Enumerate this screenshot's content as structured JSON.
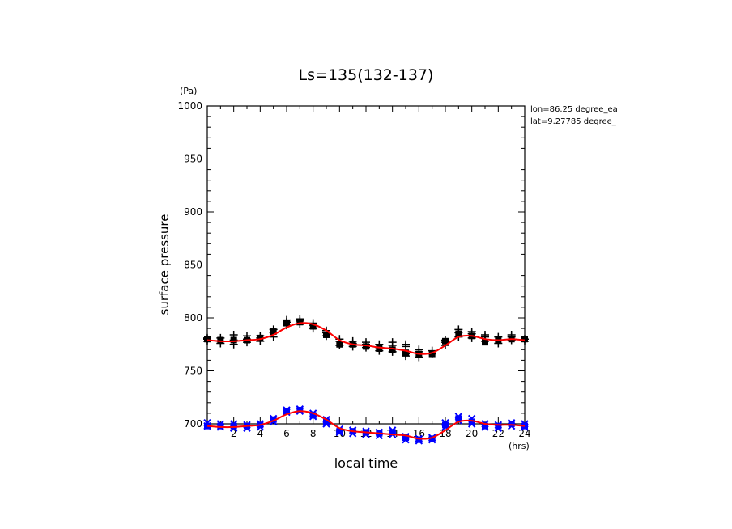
{
  "chart_data": {
    "type": "scatter",
    "title": "Ls=135(132-137)",
    "xlabel": "local time",
    "ylabel": "surface pressure",
    "x_unit": "(hrs)",
    "y_unit": "(Pa)",
    "xlim": [
      0,
      24
    ],
    "ylim": [
      700,
      1000
    ],
    "x_ticks": [
      2,
      4,
      6,
      8,
      10,
      12,
      14,
      16,
      18,
      20,
      22,
      24
    ],
    "y_ticks": [
      700,
      750,
      800,
      850,
      900,
      950,
      1000
    ],
    "annotations": [
      "lon=86.25 degree_ea",
      "lat=9.27785 degree_"
    ],
    "grid": false,
    "series": [
      {
        "marker": "plus",
        "color": "#000000",
        "points": [
          [
            0,
            780
          ],
          [
            0,
            778
          ],
          [
            0,
            781
          ],
          [
            1,
            778
          ],
          [
            1,
            781
          ],
          [
            1,
            776
          ],
          [
            2,
            779
          ],
          [
            2,
            784
          ],
          [
            2,
            775
          ],
          [
            3,
            780
          ],
          [
            3,
            783
          ],
          [
            3,
            777
          ],
          [
            4,
            781
          ],
          [
            4,
            778
          ],
          [
            4,
            783
          ],
          [
            5,
            789
          ],
          [
            5,
            782
          ],
          [
            5,
            786
          ],
          [
            6,
            796
          ],
          [
            6,
            793
          ],
          [
            6,
            798
          ],
          [
            7,
            797
          ],
          [
            7,
            799
          ],
          [
            7,
            794
          ],
          [
            8,
            793
          ],
          [
            8,
            790
          ],
          [
            8,
            795
          ],
          [
            9,
            788
          ],
          [
            9,
            783
          ],
          [
            9,
            786
          ],
          [
            10,
            778
          ],
          [
            10,
            774
          ],
          [
            10,
            780
          ],
          [
            11,
            776
          ],
          [
            11,
            773
          ],
          [
            11,
            778
          ],
          [
            12,
            775
          ],
          [
            12,
            772
          ],
          [
            12,
            777
          ],
          [
            13,
            772
          ],
          [
            13,
            769
          ],
          [
            13,
            775
          ],
          [
            14,
            774
          ],
          [
            14,
            768
          ],
          [
            14,
            777
          ],
          [
            15,
            773
          ],
          [
            15,
            766
          ],
          [
            15,
            764
          ],
          [
            15,
            775
          ],
          [
            16,
            768
          ],
          [
            16,
            763
          ],
          [
            16,
            770
          ],
          [
            17,
            766
          ],
          [
            17,
            769
          ],
          [
            18,
            777
          ],
          [
            18,
            774
          ],
          [
            18,
            779
          ],
          [
            19,
            786
          ],
          [
            19,
            782
          ],
          [
            19,
            789
          ],
          [
            20,
            785
          ],
          [
            20,
            781
          ],
          [
            20,
            787
          ],
          [
            21,
            782
          ],
          [
            21,
            778
          ],
          [
            21,
            784
          ],
          [
            22,
            779
          ],
          [
            22,
            776
          ],
          [
            22,
            782
          ],
          [
            23,
            782
          ],
          [
            23,
            779
          ],
          [
            23,
            784
          ],
          [
            24,
            780
          ],
          [
            24,
            778
          ]
        ]
      },
      {
        "marker": "square",
        "color": "#000000",
        "points": [
          [
            0,
            780
          ],
          [
            1,
            779
          ],
          [
            2,
            779
          ],
          [
            3,
            779
          ],
          [
            4,
            781
          ],
          [
            5,
            787
          ],
          [
            6,
            795
          ],
          [
            7,
            796
          ],
          [
            8,
            792
          ],
          [
            9,
            784
          ],
          [
            10,
            775
          ],
          [
            11,
            775
          ],
          [
            12,
            773
          ],
          [
            13,
            771
          ],
          [
            14,
            770
          ],
          [
            15,
            767
          ],
          [
            16,
            766
          ],
          [
            17,
            766
          ],
          [
            18,
            778
          ],
          [
            19,
            785
          ],
          [
            20,
            783
          ],
          [
            21,
            777
          ],
          [
            22,
            779
          ],
          [
            23,
            780
          ],
          [
            24,
            780
          ]
        ]
      },
      {
        "marker": "x",
        "color": "#0000ff",
        "points": [
          [
            0,
            698
          ],
          [
            0,
            701
          ],
          [
            1,
            697
          ],
          [
            1,
            700
          ],
          [
            2,
            700
          ],
          [
            2,
            696
          ],
          [
            3,
            699
          ],
          [
            3,
            696
          ],
          [
            4,
            700
          ],
          [
            4,
            697
          ],
          [
            5,
            705
          ],
          [
            5,
            702
          ],
          [
            6,
            713
          ],
          [
            6,
            711
          ],
          [
            7,
            714
          ],
          [
            7,
            712
          ],
          [
            8,
            710
          ],
          [
            8,
            707
          ],
          [
            9,
            704
          ],
          [
            9,
            700
          ],
          [
            10,
            695
          ],
          [
            10,
            692
          ],
          [
            11,
            694
          ],
          [
            11,
            691
          ],
          [
            12,
            693
          ],
          [
            12,
            690
          ],
          [
            13,
            692
          ],
          [
            13,
            689
          ],
          [
            14,
            694
          ],
          [
            14,
            690
          ],
          [
            15,
            688
          ],
          [
            15,
            685
          ],
          [
            16,
            686
          ],
          [
            16,
            684
          ],
          [
            17,
            687
          ],
          [
            17,
            685
          ],
          [
            18,
            701
          ],
          [
            18,
            697
          ],
          [
            19,
            707
          ],
          [
            19,
            703
          ],
          [
            20,
            705
          ],
          [
            20,
            700
          ],
          [
            21,
            700
          ],
          [
            21,
            697
          ],
          [
            22,
            699
          ],
          [
            22,
            696
          ],
          [
            23,
            701
          ],
          [
            23,
            698
          ],
          [
            24,
            700
          ],
          [
            24,
            697
          ]
        ]
      },
      {
        "marker": "square",
        "color": "#0000ff",
        "points": [
          [
            0,
            698
          ],
          [
            1,
            698
          ],
          [
            2,
            698
          ],
          [
            3,
            698
          ],
          [
            4,
            699
          ],
          [
            5,
            704
          ],
          [
            6,
            712
          ],
          [
            7,
            713
          ],
          [
            8,
            708
          ],
          [
            9,
            702
          ],
          [
            10,
            693
          ],
          [
            11,
            693
          ],
          [
            12,
            692
          ],
          [
            13,
            691
          ],
          [
            14,
            692
          ],
          [
            15,
            687
          ],
          [
            16,
            685
          ],
          [
            17,
            686
          ],
          [
            18,
            699
          ],
          [
            19,
            705
          ],
          [
            20,
            702
          ],
          [
            21,
            698
          ],
          [
            22,
            698
          ],
          [
            23,
            700
          ],
          [
            24,
            698
          ]
        ]
      },
      {
        "marker": "line",
        "color": "#ff0000",
        "points": [
          [
            0,
            779
          ],
          [
            1,
            778
          ],
          [
            2,
            778
          ],
          [
            3,
            779
          ],
          [
            4,
            780
          ],
          [
            5,
            784
          ],
          [
            6,
            791
          ],
          [
            7,
            795
          ],
          [
            8,
            794
          ],
          [
            9,
            788
          ],
          [
            10,
            779
          ],
          [
            11,
            775
          ],
          [
            12,
            774
          ],
          [
            13,
            772
          ],
          [
            14,
            771
          ],
          [
            15,
            769
          ],
          [
            16,
            766
          ],
          [
            17,
            767
          ],
          [
            18,
            774
          ],
          [
            19,
            782
          ],
          [
            20,
            783
          ],
          [
            21,
            780
          ],
          [
            22,
            779
          ],
          [
            23,
            780
          ],
          [
            24,
            779
          ]
        ]
      },
      {
        "marker": "line",
        "color": "#ff0000",
        "points": [
          [
            0,
            698
          ],
          [
            1,
            697
          ],
          [
            2,
            697
          ],
          [
            3,
            698
          ],
          [
            4,
            699
          ],
          [
            5,
            703
          ],
          [
            6,
            709
          ],
          [
            7,
            712
          ],
          [
            8,
            710
          ],
          [
            9,
            704
          ],
          [
            10,
            696
          ],
          [
            11,
            693
          ],
          [
            12,
            692
          ],
          [
            13,
            691
          ],
          [
            14,
            690
          ],
          [
            15,
            689
          ],
          [
            16,
            686
          ],
          [
            17,
            687
          ],
          [
            18,
            694
          ],
          [
            19,
            702
          ],
          [
            20,
            703
          ],
          [
            21,
            700
          ],
          [
            22,
            699
          ],
          [
            23,
            699
          ],
          [
            24,
            698
          ]
        ]
      }
    ]
  }
}
